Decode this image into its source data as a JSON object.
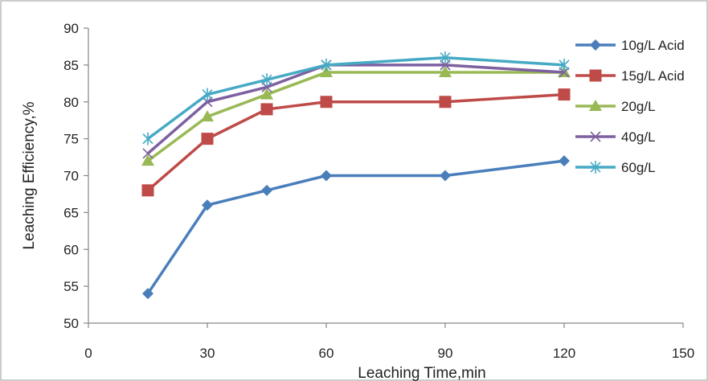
{
  "chart_data": {
    "type": "line",
    "title": "",
    "xlabel": "Leaching Time,min",
    "ylabel": "Leaching Efficiency,%",
    "xlim": [
      0,
      150
    ],
    "ylim": [
      50,
      90
    ],
    "x_ticks": [
      0,
      30,
      60,
      90,
      120,
      150
    ],
    "y_ticks": [
      50,
      55,
      60,
      65,
      70,
      75,
      80,
      85,
      90
    ],
    "grid": false,
    "legend_position": "top-right",
    "x": [
      15,
      30,
      45,
      60,
      90,
      120
    ],
    "series": [
      {
        "name": "10g/L Acid",
        "values": [
          54,
          66,
          68,
          70,
          70,
          72
        ],
        "color": "#4a7ebb",
        "marker": "diamond"
      },
      {
        "name": "15g/L Acid",
        "values": [
          68,
          75,
          79,
          80,
          80,
          81
        ],
        "color": "#be4b48",
        "marker": "square"
      },
      {
        "name": "20g/L",
        "values": [
          72,
          78,
          81,
          84,
          84,
          84
        ],
        "color": "#98b954",
        "marker": "triangle"
      },
      {
        "name": "40g/L",
        "values": [
          73,
          80,
          82,
          85,
          85,
          84
        ],
        "color": "#7d60a0",
        "marker": "x"
      },
      {
        "name": "60g/L",
        "values": [
          75,
          81,
          83,
          85,
          86,
          85
        ],
        "color": "#46aac5",
        "marker": "star"
      }
    ]
  }
}
